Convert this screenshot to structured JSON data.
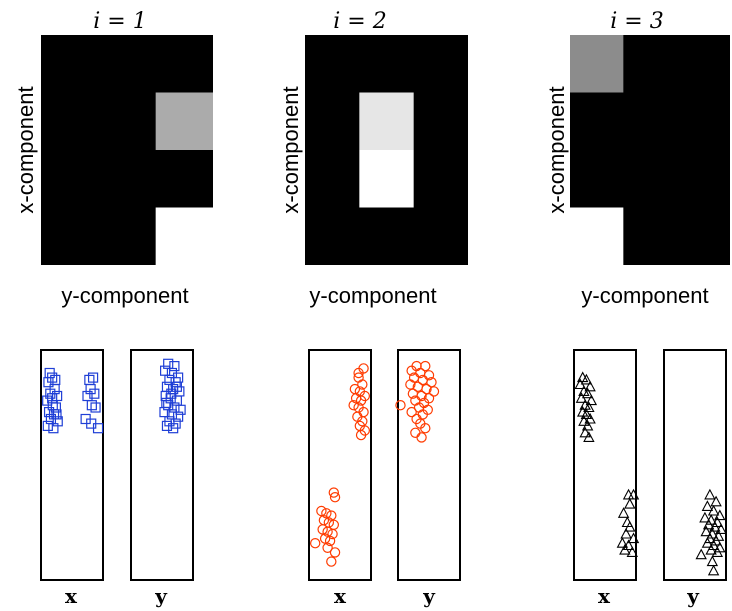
{
  "panels": [
    {
      "title": "i = 1",
      "xlabel": "y-component",
      "ylabel": "x-component",
      "grid": {
        "rows": 4,
        "cols": 3,
        "cells": [
          {
            "row": 1,
            "col": 2,
            "value": 0.67
          },
          {
            "row": 3,
            "col": 2,
            "value": 1.0
          }
        ]
      },
      "scatter": {
        "marker": "square",
        "color": "#1f3fd6",
        "x_label": "x",
        "y_label": "y",
        "x_points": [
          [
            0.12,
            0.14
          ],
          [
            0.18,
            0.12
          ],
          [
            0.22,
            0.17
          ],
          [
            0.15,
            0.19
          ],
          [
            0.26,
            0.2
          ],
          [
            0.1,
            0.22
          ],
          [
            0.19,
            0.24
          ],
          [
            0.24,
            0.25
          ],
          [
            0.13,
            0.27
          ],
          [
            0.21,
            0.28
          ],
          [
            0.16,
            0.3
          ],
          [
            0.27,
            0.31
          ],
          [
            0.11,
            0.33
          ],
          [
            0.2,
            0.34
          ],
          [
            0.23,
            0.13
          ],
          [
            0.14,
            0.1
          ],
          [
            0.25,
            0.28
          ],
          [
            0.18,
            0.21
          ],
          [
            0.78,
            0.13
          ],
          [
            0.84,
            0.12
          ],
          [
            0.8,
            0.17
          ],
          [
            0.86,
            0.19
          ],
          [
            0.75,
            0.2
          ],
          [
            0.82,
            0.24
          ],
          [
            0.88,
            0.25
          ],
          [
            0.72,
            0.3
          ],
          [
            0.81,
            0.32
          ],
          [
            0.92,
            0.34
          ]
        ],
        "y_points": [
          [
            0.6,
            0.06
          ],
          [
            0.7,
            0.07
          ],
          [
            0.55,
            0.09
          ],
          [
            0.66,
            0.1
          ],
          [
            0.76,
            0.12
          ],
          [
            0.62,
            0.13
          ],
          [
            0.72,
            0.14
          ],
          [
            0.58,
            0.16
          ],
          [
            0.68,
            0.17
          ],
          [
            0.78,
            0.18
          ],
          [
            0.56,
            0.2
          ],
          [
            0.64,
            0.21
          ],
          [
            0.74,
            0.22
          ],
          [
            0.6,
            0.24
          ],
          [
            0.7,
            0.25
          ],
          [
            0.8,
            0.26
          ],
          [
            0.54,
            0.27
          ],
          [
            0.66,
            0.28
          ],
          [
            0.76,
            0.29
          ],
          [
            0.62,
            0.31
          ],
          [
            0.72,
            0.32
          ],
          [
            0.58,
            0.33
          ],
          [
            0.68,
            0.34
          ],
          [
            0.65,
            0.19
          ],
          [
            0.74,
            0.16
          ],
          [
            0.57,
            0.23
          ]
        ]
      }
    },
    {
      "title": "i = 2",
      "xlabel": "y-component",
      "ylabel": "x-component",
      "grid": {
        "rows": 4,
        "cols": 3,
        "cells": [
          {
            "row": 1,
            "col": 1,
            "value": 0.9
          },
          {
            "row": 2,
            "col": 1,
            "value": 1.0
          }
        ]
      },
      "scatter": {
        "marker": "circle",
        "color": "#ff3b00",
        "x_label": "x",
        "y_label": "y",
        "x_points": [
          [
            0.88,
            0.08
          ],
          [
            0.8,
            0.12
          ],
          [
            0.86,
            0.15
          ],
          [
            0.74,
            0.17
          ],
          [
            0.82,
            0.18
          ],
          [
            0.9,
            0.2
          ],
          [
            0.76,
            0.21
          ],
          [
            0.84,
            0.22
          ],
          [
            0.72,
            0.24
          ],
          [
            0.8,
            0.25
          ],
          [
            0.88,
            0.27
          ],
          [
            0.78,
            0.29
          ],
          [
            0.86,
            0.31
          ],
          [
            0.82,
            0.33
          ],
          [
            0.9,
            0.35
          ],
          [
            0.84,
            0.37
          ],
          [
            0.8,
            0.1
          ],
          [
            0.4,
            0.62
          ],
          [
            0.42,
            0.64
          ],
          [
            0.2,
            0.7
          ],
          [
            0.28,
            0.71
          ],
          [
            0.36,
            0.72
          ],
          [
            0.24,
            0.74
          ],
          [
            0.32,
            0.75
          ],
          [
            0.4,
            0.76
          ],
          [
            0.22,
            0.78
          ],
          [
            0.3,
            0.79
          ],
          [
            0.38,
            0.8
          ],
          [
            0.26,
            0.82
          ],
          [
            0.34,
            0.83
          ],
          [
            0.1,
            0.84
          ],
          [
            0.3,
            0.86
          ],
          [
            0.42,
            0.88
          ],
          [
            0.36,
            0.92
          ]
        ],
        "y_points": [
          [
            0.3,
            0.07
          ],
          [
            0.44,
            0.07
          ],
          [
            0.22,
            0.09
          ],
          [
            0.36,
            0.1
          ],
          [
            0.5,
            0.11
          ],
          [
            0.26,
            0.12
          ],
          [
            0.4,
            0.13
          ],
          [
            0.54,
            0.14
          ],
          [
            0.2,
            0.15
          ],
          [
            0.32,
            0.16
          ],
          [
            0.46,
            0.17
          ],
          [
            0.58,
            0.18
          ],
          [
            0.24,
            0.19
          ],
          [
            0.38,
            0.2
          ],
          [
            0.5,
            0.21
          ],
          [
            0.28,
            0.22
          ],
          [
            0.42,
            0.23
          ],
          [
            0.04,
            0.24
          ],
          [
            0.34,
            0.25
          ],
          [
            0.48,
            0.26
          ],
          [
            0.22,
            0.27
          ],
          [
            0.4,
            0.28
          ],
          [
            0.3,
            0.3
          ],
          [
            0.36,
            0.32
          ],
          [
            0.44,
            0.34
          ],
          [
            0.28,
            0.36
          ],
          [
            0.38,
            0.38
          ]
        ]
      }
    },
    {
      "title": "i = 3",
      "xlabel": "y-component",
      "ylabel": "x-component",
      "grid": {
        "rows": 4,
        "cols": 3,
        "cells": [
          {
            "row": 0,
            "col": 0,
            "value": 0.55
          },
          {
            "row": 3,
            "col": 0,
            "value": 1.0
          }
        ]
      },
      "scatter": {
        "marker": "triangle",
        "color": "#000000",
        "x_label": "x",
        "y_label": "y",
        "x_points": [
          [
            0.14,
            0.12
          ],
          [
            0.2,
            0.13
          ],
          [
            0.1,
            0.15
          ],
          [
            0.26,
            0.16
          ],
          [
            0.16,
            0.18
          ],
          [
            0.22,
            0.19
          ],
          [
            0.12,
            0.21
          ],
          [
            0.28,
            0.22
          ],
          [
            0.18,
            0.24
          ],
          [
            0.24,
            0.25
          ],
          [
            0.14,
            0.27
          ],
          [
            0.2,
            0.28
          ],
          [
            0.26,
            0.3
          ],
          [
            0.16,
            0.31
          ],
          [
            0.22,
            0.33
          ],
          [
            0.18,
            0.36
          ],
          [
            0.24,
            0.38
          ],
          [
            0.88,
            0.63
          ],
          [
            0.96,
            0.63
          ],
          [
            0.9,
            0.67
          ],
          [
            0.8,
            0.71
          ],
          [
            0.86,
            0.75
          ],
          [
            0.9,
            0.77
          ],
          [
            0.84,
            0.8
          ],
          [
            0.96,
            0.82
          ],
          [
            0.78,
            0.84
          ],
          [
            0.88,
            0.85
          ],
          [
            0.82,
            0.87
          ],
          [
            0.94,
            0.88
          ]
        ],
        "y_points": [
          [
            0.74,
            0.63
          ],
          [
            0.84,
            0.66
          ],
          [
            0.7,
            0.68
          ],
          [
            0.8,
            0.7
          ],
          [
            0.9,
            0.72
          ],
          [
            0.66,
            0.73
          ],
          [
            0.76,
            0.74
          ],
          [
            0.86,
            0.75
          ],
          [
            0.72,
            0.76
          ],
          [
            0.82,
            0.77
          ],
          [
            0.92,
            0.78
          ],
          [
            0.68,
            0.79
          ],
          [
            0.78,
            0.8
          ],
          [
            0.88,
            0.81
          ],
          [
            0.74,
            0.82
          ],
          [
            0.84,
            0.83
          ],
          [
            0.7,
            0.84
          ],
          [
            0.8,
            0.85
          ],
          [
            0.9,
            0.86
          ],
          [
            0.76,
            0.87
          ],
          [
            0.86,
            0.88
          ],
          [
            0.6,
            0.89
          ],
          [
            0.78,
            0.92
          ],
          [
            0.8,
            0.96
          ]
        ]
      }
    }
  ],
  "chart_data": [
    {
      "type": "heatmap",
      "title": "i = 1",
      "xlabel": "y-component",
      "ylabel": "x-component",
      "rows": 4,
      "cols": 3,
      "values": [
        [
          0,
          0,
          0
        ],
        [
          0,
          0,
          0.67
        ],
        [
          0,
          0,
          0
        ],
        [
          0,
          0,
          1.0
        ]
      ],
      "colormap": "grayscale"
    },
    {
      "type": "heatmap",
      "title": "i = 2",
      "xlabel": "y-component",
      "ylabel": "x-component",
      "rows": 4,
      "cols": 3,
      "values": [
        [
          0,
          0,
          0
        ],
        [
          0,
          0.9,
          0
        ],
        [
          0,
          1.0,
          0
        ],
        [
          0,
          0,
          0
        ]
      ],
      "colormap": "grayscale"
    },
    {
      "type": "heatmap",
      "title": "i = 3",
      "xlabel": "y-component",
      "ylabel": "x-component",
      "rows": 4,
      "cols": 3,
      "values": [
        [
          0.55,
          0,
          0
        ],
        [
          0,
          0,
          0
        ],
        [
          0,
          0,
          0
        ],
        [
          1.0,
          0,
          0
        ]
      ],
      "colormap": "grayscale"
    },
    {
      "type": "scatter",
      "panel": "i = 1",
      "subplots": [
        "x",
        "y"
      ],
      "marker": "square",
      "color": "#1f3fd6"
    },
    {
      "type": "scatter",
      "panel": "i = 2",
      "subplots": [
        "x",
        "y"
      ],
      "marker": "circle",
      "color": "#ff3b00"
    },
    {
      "type": "scatter",
      "panel": "i = 3",
      "subplots": [
        "x",
        "y"
      ],
      "marker": "triangle",
      "color": "#000000"
    }
  ]
}
